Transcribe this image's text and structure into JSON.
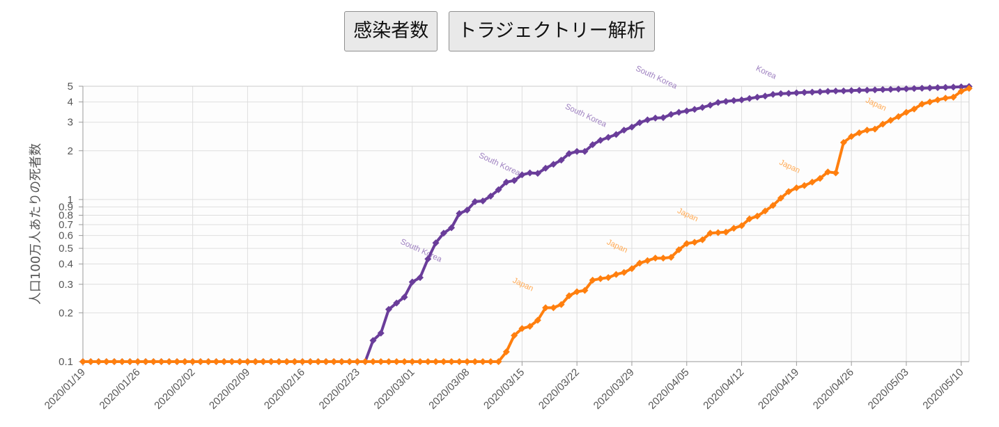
{
  "buttons": {
    "infections": "感染者数",
    "trajectory": "トラジェクトリー解析"
  },
  "chart_data": {
    "type": "line",
    "title": "",
    "xlabel": "",
    "ylabel": "人口100万人あたりの死者数",
    "y_scale": "log",
    "ylim": [
      0.1,
      5
    ],
    "y_ticks": [
      0.1,
      0.2,
      0.3,
      0.4,
      0.5,
      0.6,
      0.7,
      0.8,
      0.9,
      1,
      2,
      3,
      4,
      5
    ],
    "y_tick_labels": [
      "0.1",
      "0.2",
      "0.3",
      "0.4",
      "0.5",
      "0.6",
      "0.7",
      "0.8",
      "0.9",
      "1",
      "2",
      "3",
      "4",
      "5"
    ],
    "x_start": "2020/01/19",
    "x_end": "2020/05/11",
    "x_tick_labels": [
      "2020/01/19",
      "2020/01/26",
      "2020/02/02",
      "2020/02/09",
      "2020/02/16",
      "2020/02/23",
      "2020/03/01",
      "2020/03/08",
      "2020/03/15",
      "2020/03/22",
      "2020/03/29",
      "2020/04/05",
      "2020/04/12",
      "2020/04/19",
      "2020/04/26",
      "2020/05/03",
      "2020/05/10"
    ],
    "grid": true,
    "markers": "diamond",
    "series": [
      {
        "name": "South Korea",
        "color": "#6a3d9a",
        "label_color": "#9e80c0",
        "points": [
          [
            "2020/01/19",
            0.1
          ],
          [
            "2020/02/24",
            0.1
          ],
          [
            "2020/02/25",
            0.135
          ],
          [
            "2020/02/26",
            0.15
          ],
          [
            "2020/02/27",
            0.21
          ],
          [
            "2020/02/28",
            0.23
          ],
          [
            "2020/02/29",
            0.25
          ],
          [
            "2020/03/01",
            0.31
          ],
          [
            "2020/03/02",
            0.33
          ],
          [
            "2020/03/03",
            0.43
          ],
          [
            "2020/03/04",
            0.54
          ],
          [
            "2020/03/05",
            0.62
          ],
          [
            "2020/03/06",
            0.67
          ],
          [
            "2020/03/07",
            0.82
          ],
          [
            "2020/03/08",
            0.86
          ],
          [
            "2020/03/09",
            0.97
          ],
          [
            "2020/03/10",
            0.98
          ],
          [
            "2020/03/11",
            1.05
          ],
          [
            "2020/03/12",
            1.15
          ],
          [
            "2020/03/13",
            1.28
          ],
          [
            "2020/03/14",
            1.31
          ],
          [
            "2020/03/15",
            1.42
          ],
          [
            "2020/03/16",
            1.46
          ],
          [
            "2020/03/17",
            1.45
          ],
          [
            "2020/03/18",
            1.56
          ],
          [
            "2020/03/19",
            1.65
          ],
          [
            "2020/03/20",
            1.75
          ],
          [
            "2020/03/21",
            1.92
          ],
          [
            "2020/03/22",
            1.98
          ],
          [
            "2020/03/23",
            1.98
          ],
          [
            "2020/03/24",
            2.18
          ],
          [
            "2020/03/25",
            2.32
          ],
          [
            "2020/03/26",
            2.42
          ],
          [
            "2020/03/27",
            2.52
          ],
          [
            "2020/03/28",
            2.68
          ],
          [
            "2020/03/29",
            2.8
          ],
          [
            "2020/03/30",
            2.98
          ],
          [
            "2020/03/31",
            3.1
          ],
          [
            "2020/04/01",
            3.18
          ],
          [
            "2020/04/02",
            3.2
          ],
          [
            "2020/04/03",
            3.35
          ],
          [
            "2020/04/04",
            3.45
          ],
          [
            "2020/04/05",
            3.52
          ],
          [
            "2020/04/06",
            3.6
          ],
          [
            "2020/04/07",
            3.7
          ],
          [
            "2020/04/08",
            3.82
          ],
          [
            "2020/04/09",
            3.97
          ],
          [
            "2020/04/10",
            4.03
          ],
          [
            "2020/04/11",
            4.08
          ],
          [
            "2020/04/12",
            4.12
          ],
          [
            "2020/04/13",
            4.2
          ],
          [
            "2020/04/14",
            4.28
          ],
          [
            "2020/04/15",
            4.35
          ],
          [
            "2020/04/16",
            4.45
          ],
          [
            "2020/04/17",
            4.5
          ],
          [
            "2020/04/18",
            4.52
          ],
          [
            "2020/04/19",
            4.55
          ],
          [
            "2020/04/20",
            4.58
          ],
          [
            "2020/04/21",
            4.6
          ],
          [
            "2020/04/22",
            4.62
          ],
          [
            "2020/04/23",
            4.65
          ],
          [
            "2020/04/24",
            4.67
          ],
          [
            "2020/04/25",
            4.68
          ],
          [
            "2020/04/26",
            4.7
          ],
          [
            "2020/04/27",
            4.72
          ],
          [
            "2020/04/28",
            4.73
          ],
          [
            "2020/04/29",
            4.75
          ],
          [
            "2020/04/30",
            4.77
          ],
          [
            "2020/05/01",
            4.78
          ],
          [
            "2020/05/02",
            4.8
          ],
          [
            "2020/05/03",
            4.82
          ],
          [
            "2020/05/04",
            4.84
          ],
          [
            "2020/05/05",
            4.86
          ],
          [
            "2020/05/06",
            4.88
          ],
          [
            "2020/05/07",
            4.9
          ],
          [
            "2020/05/08",
            4.92
          ],
          [
            "2020/05/09",
            4.94
          ],
          [
            "2020/05/10",
            4.96
          ],
          [
            "2020/05/11",
            4.98
          ]
        ]
      },
      {
        "name": "Japan",
        "color": "#ff7f0e",
        "label_color": "#ffaa55",
        "points": [
          [
            "2020/01/19",
            0.1
          ],
          [
            "2020/03/12",
            0.1
          ],
          [
            "2020/03/13",
            0.115
          ],
          [
            "2020/03/14",
            0.145
          ],
          [
            "2020/03/15",
            0.16
          ],
          [
            "2020/03/16",
            0.165
          ],
          [
            "2020/03/17",
            0.18
          ],
          [
            "2020/03/18",
            0.215
          ],
          [
            "2020/03/19",
            0.215
          ],
          [
            "2020/03/20",
            0.225
          ],
          [
            "2020/03/21",
            0.255
          ],
          [
            "2020/03/22",
            0.27
          ],
          [
            "2020/03/23",
            0.275
          ],
          [
            "2020/03/24",
            0.318
          ],
          [
            "2020/03/25",
            0.325
          ],
          [
            "2020/03/26",
            0.33
          ],
          [
            "2020/03/27",
            0.345
          ],
          [
            "2020/03/28",
            0.355
          ],
          [
            "2020/03/29",
            0.375
          ],
          [
            "2020/03/30",
            0.405
          ],
          [
            "2020/03/31",
            0.42
          ],
          [
            "2020/04/01",
            0.435
          ],
          [
            "2020/04/02",
            0.435
          ],
          [
            "2020/04/03",
            0.44
          ],
          [
            "2020/04/04",
            0.49
          ],
          [
            "2020/04/05",
            0.535
          ],
          [
            "2020/04/06",
            0.545
          ],
          [
            "2020/04/07",
            0.565
          ],
          [
            "2020/04/08",
            0.62
          ],
          [
            "2020/04/09",
            0.625
          ],
          [
            "2020/04/10",
            0.63
          ],
          [
            "2020/04/11",
            0.665
          ],
          [
            "2020/04/12",
            0.69
          ],
          [
            "2020/04/13",
            0.76
          ],
          [
            "2020/04/14",
            0.79
          ],
          [
            "2020/04/15",
            0.85
          ],
          [
            "2020/04/16",
            0.92
          ],
          [
            "2020/04/17",
            1.02
          ],
          [
            "2020/04/18",
            1.12
          ],
          [
            "2020/04/19",
            1.18
          ],
          [
            "2020/04/20",
            1.22
          ],
          [
            "2020/04/21",
            1.28
          ],
          [
            "2020/04/22",
            1.35
          ],
          [
            "2020/04/23",
            1.48
          ],
          [
            "2020/04/24",
            1.46
          ],
          [
            "2020/04/25",
            2.25
          ],
          [
            "2020/04/26",
            2.45
          ],
          [
            "2020/04/27",
            2.58
          ],
          [
            "2020/04/28",
            2.68
          ],
          [
            "2020/04/29",
            2.72
          ],
          [
            "2020/04/30",
            2.92
          ],
          [
            "2020/05/01",
            3.08
          ],
          [
            "2020/05/02",
            3.25
          ],
          [
            "2020/05/03",
            3.45
          ],
          [
            "2020/05/04",
            3.62
          ],
          [
            "2020/05/05",
            3.88
          ],
          [
            "2020/05/06",
            4.0
          ],
          [
            "2020/05/07",
            4.12
          ],
          [
            "2020/05/08",
            4.22
          ],
          [
            "2020/05/09",
            4.28
          ],
          [
            "2020/05/10",
            4.65
          ],
          [
            "2020/05/11",
            4.85
          ]
        ]
      }
    ],
    "annotations": [
      {
        "text": "South Korea",
        "series": "South Korea",
        "x": "2020/03/02",
        "y": 0.47
      },
      {
        "text": "South Korea",
        "series": "South Korea",
        "x": "2020/03/12",
        "y": 1.6
      },
      {
        "text": "South Korea",
        "series": "South Korea",
        "x": "2020/03/23",
        "y": 3.2
      },
      {
        "text": "South Korea",
        "series": "South Korea",
        "x": "2020/04/01",
        "y": 5.5
      },
      {
        "text": "Korea",
        "series": "South Korea",
        "x": "2020/04/15",
        "y": 5.9
      },
      {
        "text": "Japan",
        "series": "Japan",
        "x": "2020/03/15",
        "y": 0.29
      },
      {
        "text": "Japan",
        "series": "Japan",
        "x": "2020/03/27",
        "y": 0.5
      },
      {
        "text": "Japan",
        "series": "Japan",
        "x": "2020/04/05",
        "y": 0.78
      },
      {
        "text": "Japan",
        "series": "Japan",
        "x": "2020/04/18",
        "y": 1.55
      },
      {
        "text": "Japan",
        "series": "Japan",
        "x": "2020/04/29",
        "y": 3.75
      }
    ]
  }
}
